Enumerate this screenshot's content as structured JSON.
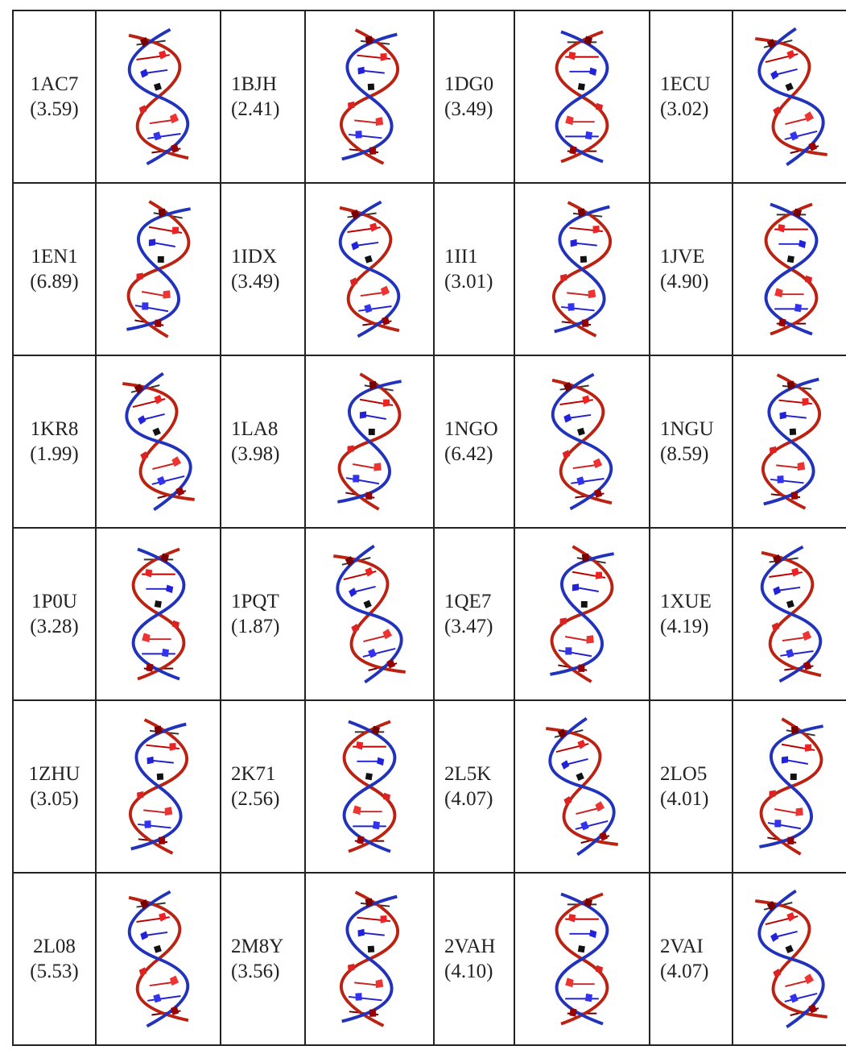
{
  "table": {
    "rows": [
      [
        {
          "id": "1AC7",
          "score": "(3.59)"
        },
        {
          "id": "1BJH",
          "score": "(2.41)"
        },
        {
          "id": "1DG0",
          "score": "(3.49)"
        },
        {
          "id": "1ECU",
          "score": "(3.02)"
        }
      ],
      [
        {
          "id": "1EN1",
          "score": "(6.89)"
        },
        {
          "id": "1IDX",
          "score": "(3.49)"
        },
        {
          "id": "1II1",
          "score": "(3.01)"
        },
        {
          "id": "1JVE",
          "score": "(4.90)"
        }
      ],
      [
        {
          "id": "1KR8",
          "score": "(1.99)"
        },
        {
          "id": "1LA8",
          "score": "(3.98)"
        },
        {
          "id": "1NGO",
          "score": "(6.42)"
        },
        {
          "id": "1NGU",
          "score": "(8.59)"
        }
      ],
      [
        {
          "id": "1P0U",
          "score": "(3.28)"
        },
        {
          "id": "1PQT",
          "score": "(1.87)"
        },
        {
          "id": "1QE7",
          "score": "(3.47)"
        },
        {
          "id": "1XUE",
          "score": "(4.19)"
        }
      ],
      [
        {
          "id": "1ZHU",
          "score": "(3.05)"
        },
        {
          "id": "2K71",
          "score": "(2.56)"
        },
        {
          "id": "2L5K",
          "score": "(4.07)"
        },
        {
          "id": "2LO5",
          "score": "(4.01)"
        }
      ],
      [
        {
          "id": "2L08",
          "score": "(5.53)"
        },
        {
          "id": "2M8Y",
          "score": "(3.56)"
        },
        {
          "id": "2VAH",
          "score": "(4.10)"
        },
        {
          "id": "2VAI",
          "score": "(4.07)"
        }
      ]
    ]
  }
}
